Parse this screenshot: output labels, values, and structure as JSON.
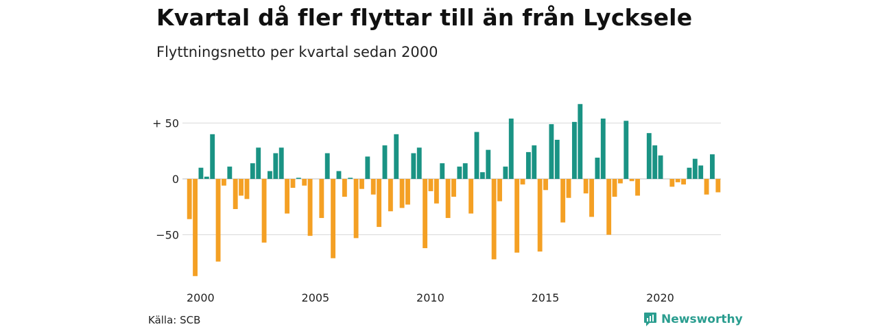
{
  "title": "Kvartal då fler flyttar till än från Lycksele",
  "subtitle": "Flyttningsnetto per kvartal sedan 2000",
  "source": "Källa: SCB",
  "brand": "Newsworthy",
  "colors": {
    "positive": "#1a9384",
    "negative": "#f4a024",
    "grid": "#d9d9d9",
    "brand": "#2a9d8f"
  },
  "chart_data": {
    "type": "bar",
    "start_year": 2000,
    "quarters_per_year": 4,
    "ylim": [
      -90,
      70
    ],
    "yticks": [
      50,
      0,
      -50
    ],
    "ytick_labels": [
      "+ 50",
      "0",
      "−50"
    ],
    "xtick_labels": [
      "2000",
      "2005",
      "2010",
      "2015",
      "2020"
    ],
    "grid": true,
    "values": [
      -36,
      -87,
      10,
      2,
      40,
      -74,
      -6,
      11,
      -27,
      -15,
      -18,
      14,
      28,
      -57,
      7,
      23,
      28,
      -31,
      -8,
      1,
      -6,
      -51,
      0,
      -35,
      23,
      -71,
      7,
      -16,
      1,
      -53,
      -9,
      20,
      -14,
      -43,
      30,
      -29,
      40,
      -26,
      -23,
      23,
      28,
      -62,
      -11,
      -22,
      14,
      -35,
      -16,
      11,
      14,
      -31,
      42,
      6,
      26,
      -72,
      -20,
      11,
      54,
      -66,
      -5,
      24,
      30,
      -65,
      -10,
      49,
      35,
      -39,
      -17,
      51,
      67,
      -13,
      -34,
      19,
      54,
      -50,
      -16,
      -4,
      52,
      -2,
      -15,
      0,
      41,
      30,
      21,
      0,
      -7,
      -3,
      -5,
      10,
      18,
      12,
      -14,
      22,
      -12
    ]
  }
}
